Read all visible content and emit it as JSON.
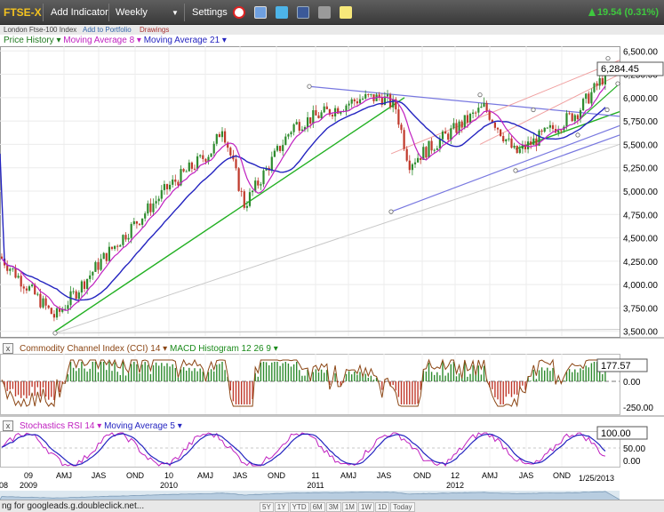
{
  "toolbar": {
    "symbol": "FTSE-X",
    "add_indicator": "Add Indicator",
    "period": "Weekly",
    "settings": "Settings",
    "icons": [
      "alarm-clock-icon",
      "doc-icon",
      "twitter-icon",
      "facebook-icon",
      "print-icon",
      "note-icon"
    ],
    "change": "19.54 (0.31%)",
    "change_color": "#3ec93e"
  },
  "subbar": {
    "index_name": "London Ftse-100 Index",
    "add_to_portfolio": "Add to Portfolio",
    "drawings": "Drawings"
  },
  "price_panel": {
    "legends": {
      "price": "Price History",
      "ma8": "Moving Average 8",
      "ma21": "Moving Average 21"
    },
    "last_price": "6,284.45",
    "y_labels": [
      "6,500.00",
      "6,250.00",
      "6,000.00",
      "5,750.00",
      "5,500.00",
      "5,250.00",
      "5,000.00",
      "4,750.00",
      "4,500.00",
      "4,250.00",
      "4,000.00",
      "3,750.00",
      "3,500.00"
    ]
  },
  "cci_panel": {
    "legends": {
      "cci": "Commodity Channel Index (CCI) 14",
      "macd": "MACD Histogram 12 26 9"
    },
    "last_value": "177.57",
    "y_labels": [
      "0.00",
      "-250.00"
    ]
  },
  "stoch_panel": {
    "legends": {
      "stoch": "Stochastics RSI 14",
      "sma5": "Moving Average 5"
    },
    "last_value": "100.00",
    "y_labels": [
      "50.00",
      "0.00"
    ]
  },
  "x_axis": {
    "month_labels": [
      "09",
      "AMJ",
      "JAS",
      "OND",
      "10",
      "AMJ",
      "JAS",
      "OND",
      "11",
      "AMJ",
      "JAS",
      "OND",
      "12",
      "AMJ",
      "JAS",
      "OND"
    ],
    "year_labels": [
      "08",
      "2009",
      "2010",
      "2011",
      "2012"
    ],
    "last_date": "1/25/2013"
  },
  "status": {
    "text": "ng for googleads.g.doubleclick.net...",
    "ranges": [
      "5Y",
      "1Y",
      "YTD",
      "6M",
      "3M",
      "1M",
      "1W",
      "1D",
      "Today"
    ]
  },
  "colors": {
    "candle_up": "#2e8b2e",
    "candle_down": "#c0392b",
    "ma8": "#c020c0",
    "ma21": "#2424c0",
    "trend_green": "#22b022",
    "trend_blue": "#7878e0",
    "trend_pink": "#f0a0a0",
    "trend_grey": "#c8c8c8"
  },
  "chart_data": [
    {
      "type": "candlestick",
      "title": "",
      "series": [
        {
          "name": "Price History",
          "x": [
            "2008-10",
            "2009-03",
            "2009-07",
            "2009-10",
            "2010-01",
            "2010-04",
            "2010-07",
            "2010-10",
            "2011-01",
            "2011-04",
            "2011-07",
            "2011-10",
            "2012-01",
            "2012-04",
            "2012-07",
            "2012-10",
            "2013-01"
          ],
          "values": [
            4300,
            3650,
            4300,
            5050,
            5450,
            5700,
            4850,
            5700,
            5990,
            6000,
            5900,
            5300,
            5650,
            5900,
            5400,
            5850,
            6284
          ]
        },
        {
          "name": "Moving Average 8",
          "values": [
            4400,
            3800,
            4200,
            5000,
            5400,
            5650,
            5050,
            5650,
            5950,
            5990,
            5850,
            5250,
            5600,
            5850,
            5500,
            5800,
            6150
          ]
        },
        {
          "name": "Moving Average 21",
          "values": [
            5400,
            3950,
            4100,
            4750,
            5250,
            5550,
            5200,
            5450,
            5850,
            5950,
            5900,
            5500,
            5500,
            5700,
            5650,
            5750,
            5900
          ]
        }
      ],
      "ylim": [
        3450,
        6550
      ]
    },
    {
      "type": "bar",
      "series": [
        {
          "name": "MACD Histogram 12 26 9"
        },
        {
          "name": "Commodity Channel Index (CCI) 14"
        }
      ],
      "last_value": 177.57
    },
    {
      "type": "line",
      "series": [
        {
          "name": "Stochastics RSI 14"
        },
        {
          "name": "Moving Average 5"
        }
      ],
      "last_value": 100
    }
  ]
}
